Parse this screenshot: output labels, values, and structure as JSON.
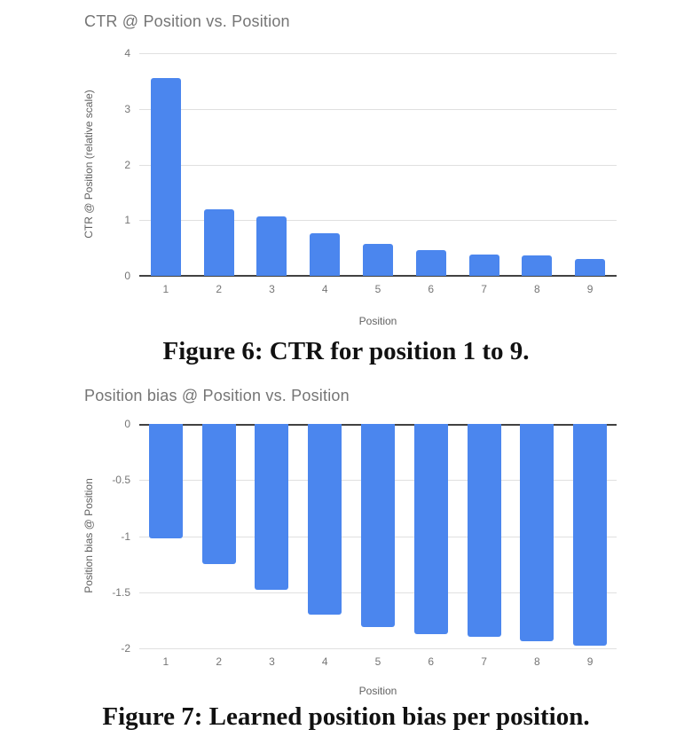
{
  "colors": {
    "bar": "#4b86ee",
    "chart_title": "#757575",
    "tick_label": "#757575",
    "axis_title": "#616161",
    "gridline": "#e0e0e0",
    "baseline": "#424242",
    "caption": "#111111"
  },
  "chart_data": [
    {
      "type": "bar",
      "title": "CTR @ Position vs. Position",
      "xlabel": "Position",
      "ylabel": "CTR @ Position (relative scale)",
      "categories": [
        "1",
        "2",
        "3",
        "4",
        "5",
        "6",
        "7",
        "8",
        "9"
      ],
      "values": [
        3.55,
        1.19,
        1.06,
        0.76,
        0.58,
        0.47,
        0.39,
        0.36,
        0.3
      ],
      "ylim": [
        0,
        4
      ],
      "yticks": [
        0,
        1,
        2,
        3,
        4
      ],
      "grid": true,
      "legend": "none"
    },
    {
      "type": "bar",
      "title": "Position bias @ Position vs. Position",
      "xlabel": "Position",
      "ylabel": "Position bias @ Position",
      "categories": [
        "1",
        "2",
        "3",
        "4",
        "5",
        "6",
        "7",
        "8",
        "9"
      ],
      "values": [
        -1.02,
        -1.25,
        -1.48,
        -1.7,
        -1.81,
        -1.87,
        -1.9,
        -1.94,
        -1.98
      ],
      "ylim": [
        -2,
        0
      ],
      "yticks": [
        0,
        -0.5,
        -1,
        -1.5,
        -2
      ],
      "grid": true,
      "legend": "none"
    }
  ],
  "captions": {
    "figure6": "Figure 6: CTR for position 1 to 9.",
    "figure7": "Figure 7: Learned position bias per position."
  }
}
